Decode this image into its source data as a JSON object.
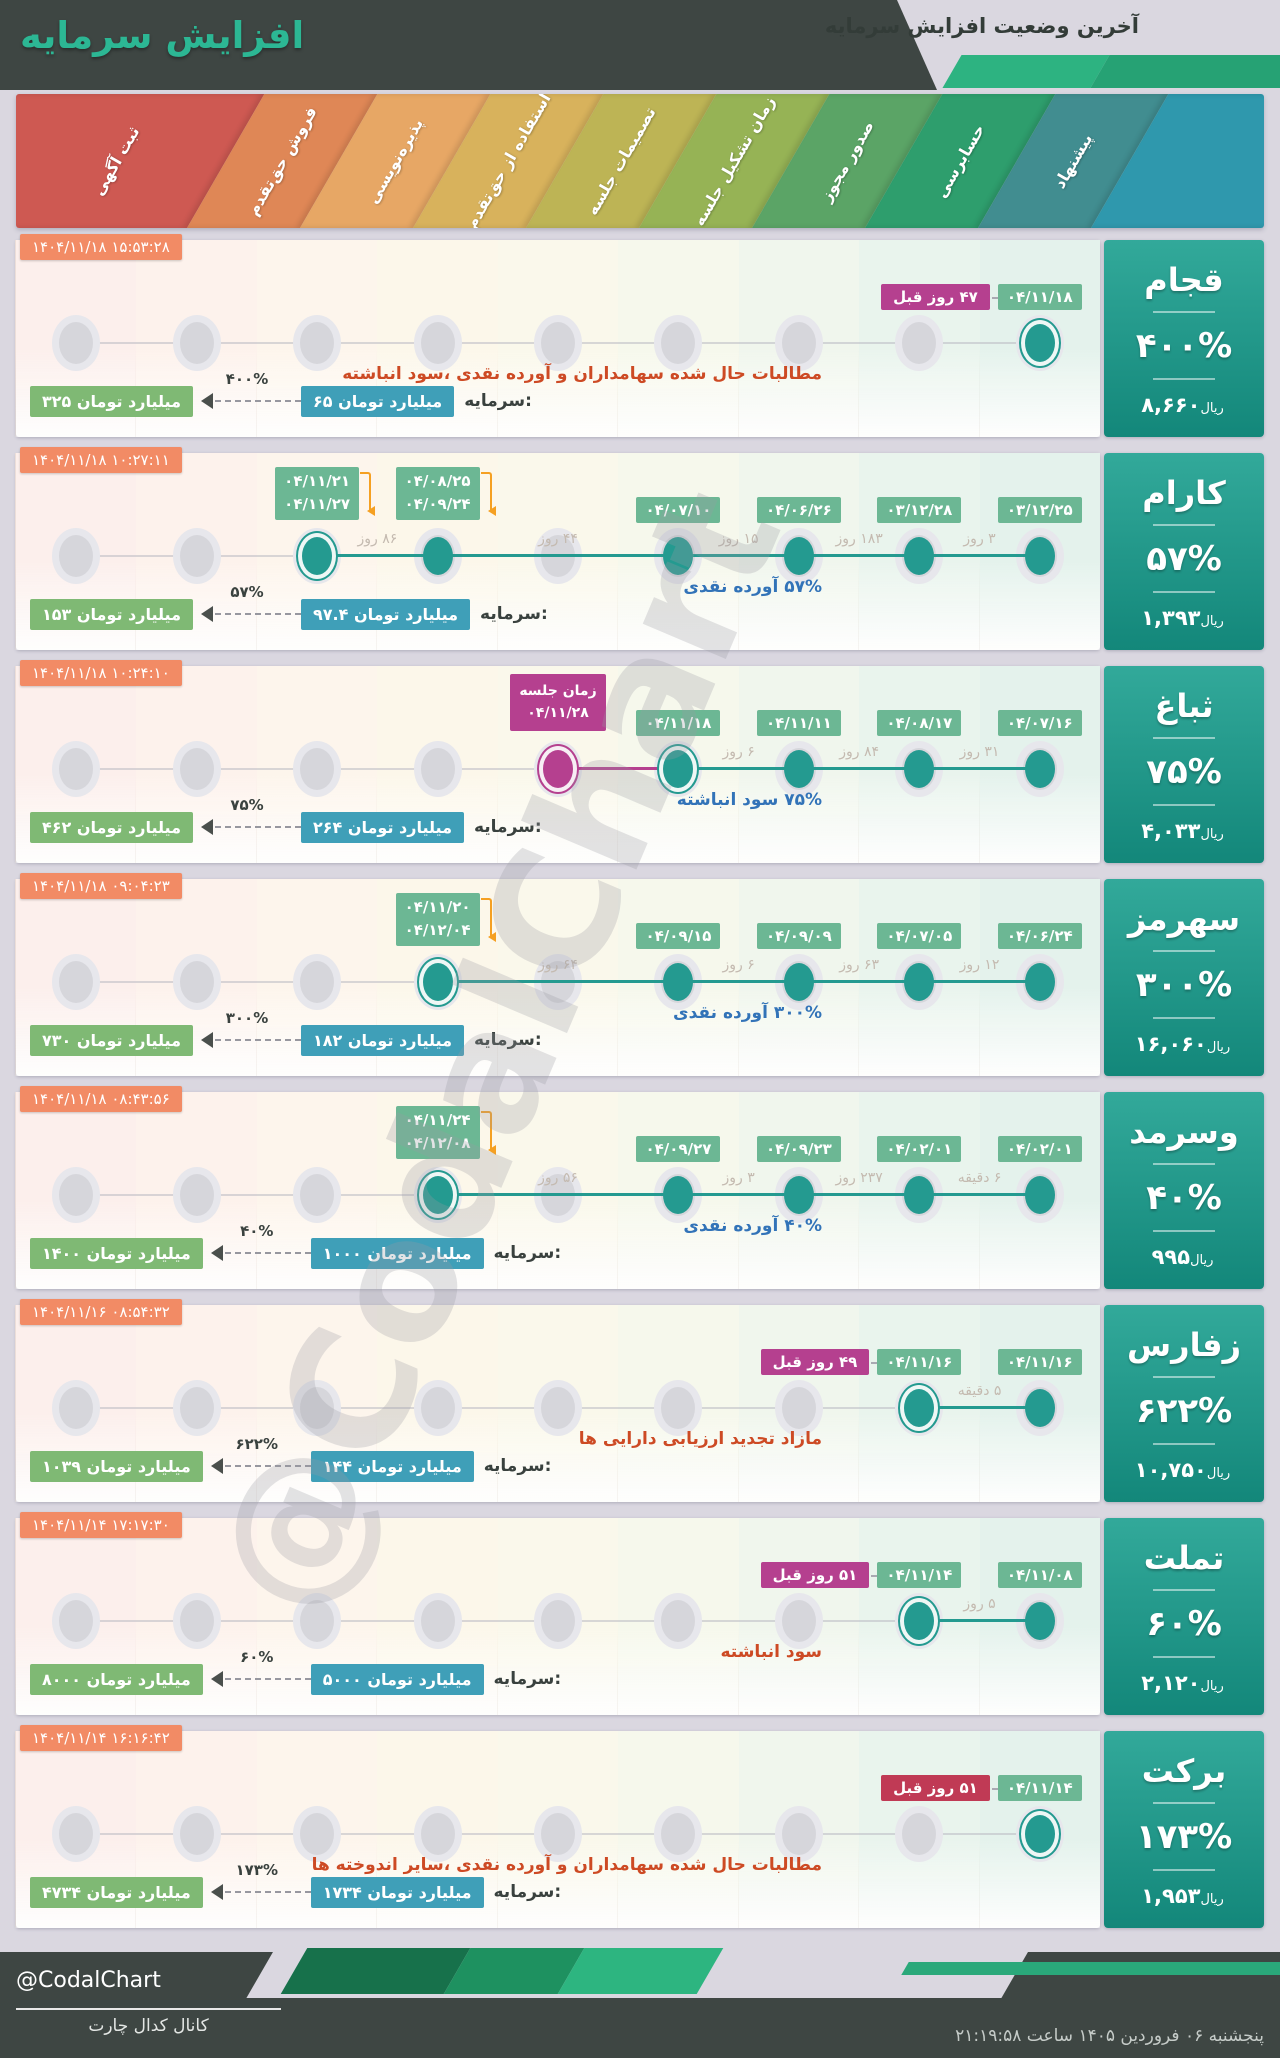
{
  "header": {
    "title": "افزایش سرمایه",
    "subtitle": "آخرین وضعیت افزایش سرمایه"
  },
  "watermark": "@CodalChart",
  "banner_filler": "#2f98ad",
  "theme": {
    "teal": "#249a90",
    "badge_green": "#6cb794",
    "badge_pink": "#b5408f",
    "badge_red": "#c03a55",
    "timestamp_orange": "#f28b65",
    "capital_blue": "#3f9fb8",
    "capital_green": "#7fb974",
    "desc_red": "#cd4a24",
    "desc_blue": "#3273b8"
  },
  "stages": [
    {
      "label": "پیشنهاد",
      "color": "#418d90",
      "tint": "#e4f2ec"
    },
    {
      "label": "حسابرسی",
      "color": "#2e9e6d",
      "tint": "#e9f4ed"
    },
    {
      "label": "صدور مجوز",
      "color": "#5ba466",
      "tint": "#f0f6ed"
    },
    {
      "label": "زمان تشکیل جلسه",
      "color": "#96b355",
      "tint": "#f6f8ec"
    },
    {
      "label": "تصمیمات جلسه",
      "color": "#bdb455",
      "tint": "#faf8eb"
    },
    {
      "label": "استفاده از حق‌تقدم",
      "color": "#d8b25c",
      "tint": "#fcf7ea"
    },
    {
      "label": "پذیره‌نویسی",
      "color": "#e7a765",
      "tint": "#fdf5ec"
    },
    {
      "label": "فروش حق‌تقدم",
      "color": "#df8756",
      "tint": "#fdf2ec"
    },
    {
      "label": "ثبت آگهی",
      "color": "#ce5952",
      "tint": "#fcefec"
    }
  ],
  "rows": [
    {
      "symbol": "قجام",
      "percent": "۴۰۰%",
      "price": "۸,۶۶۰",
      "price_unit": "ریال",
      "timestamp": "۱۴۰۴/۱۱/۱۸ ۱۵:۵۳:۲۸",
      "description": "مطالبات حال شده سهامداران و آورده نقدی ،سود انباشته",
      "description_color": "red",
      "ago": {
        "stage": 0,
        "text": "۴۷ روز قبل",
        "style": "pink"
      },
      "capital": {
        "label": "سرمایه:",
        "from": "۶۵ میلیارد تومان",
        "to": "۳۲۵ میلیارد تومان",
        "percent": "۴۰۰%"
      },
      "dots": [
        {
          "stage": 0,
          "dates": [
            "۰۴/۱۱/۱۸"
          ],
          "current": true
        }
      ],
      "gaps": []
    },
    {
      "symbol": "کارام",
      "percent": "۵۷%",
      "price": "۱,۳۹۳",
      "price_unit": "ریال",
      "timestamp": "۱۴۰۴/۱۱/۱۸ ۱۰:۲۷:۱۱",
      "description": "۵۷% آورده نقدی",
      "description_color": "blue",
      "capital": {
        "label": "سرمایه:",
        "from": "۹۷.۴ میلیارد تومان",
        "to": "۱۵۳ میلیارد تومان",
        "percent": "۵۷%"
      },
      "dots": [
        {
          "stage": 0,
          "dates": [
            "۰۳/۱۲/۲۵"
          ]
        },
        {
          "stage": 1,
          "dates": [
            "۰۳/۱۲/۲۸"
          ]
        },
        {
          "stage": 2,
          "dates": [
            "۰۴/۰۶/۲۶"
          ]
        },
        {
          "stage": 3,
          "dates": [
            "۰۴/۰۷/۱۰"
          ]
        },
        {
          "stage": 5,
          "dates": [
            "۰۴/۰۸/۲۵",
            "۰۴/۰۹/۲۴"
          ]
        },
        {
          "stage": 6,
          "dates": [
            "۰۴/۱۱/۲۱",
            "۰۴/۱۱/۲۷"
          ],
          "current": true
        }
      ],
      "gaps": [
        {
          "from": 0,
          "to": 1,
          "text": "۳ روز"
        },
        {
          "from": 1,
          "to": 2,
          "text": "۱۸۳ روز"
        },
        {
          "from": 2,
          "to": 3,
          "text": "۱۵ روز"
        },
        {
          "from": 3,
          "to": 5,
          "text": "۴۴ روز"
        },
        {
          "from": 5,
          "to": 6,
          "text": "۸۶ روز"
        }
      ]
    },
    {
      "symbol": "ثباغ",
      "percent": "۷۵%",
      "price": "۴,۰۳۳",
      "price_unit": "ریال",
      "timestamp": "۱۴۰۴/۱۱/۱۸ ۱۰:۲۴:۱۰",
      "description": "۷۵% سود انباشته",
      "description_color": "blue",
      "meeting": {
        "stage": 4,
        "label": "زمان جلسه",
        "date": "۰۴/۱۱/۲۸"
      },
      "capital": {
        "label": "سرمایه:",
        "from": "۲۶۴ میلیارد تومان",
        "to": "۴۶۲ میلیارد تومان",
        "percent": "۷۵%"
      },
      "dots": [
        {
          "stage": 0,
          "dates": [
            "۰۴/۰۷/۱۶"
          ]
        },
        {
          "stage": 1,
          "dates": [
            "۰۴/۰۸/۱۷"
          ]
        },
        {
          "stage": 2,
          "dates": [
            "۰۴/۱۱/۱۱"
          ]
        },
        {
          "stage": 3,
          "dates": [
            "۰۴/۱۱/۱۸"
          ],
          "current": true
        }
      ],
      "gaps": [
        {
          "from": 0,
          "to": 1,
          "text": "۳۱ روز"
        },
        {
          "from": 1,
          "to": 2,
          "text": "۸۴ روز"
        },
        {
          "from": 2,
          "to": 3,
          "text": "۶ روز"
        }
      ]
    },
    {
      "symbol": "سهرمز",
      "percent": "۳۰۰%",
      "price": "۱۶,۰۶۰",
      "price_unit": "ریال",
      "timestamp": "۱۴۰۴/۱۱/۱۸ ۰۹:۰۴:۲۳",
      "description": "۳۰۰% آورده نقدی",
      "description_color": "blue",
      "capital": {
        "label": "سرمایه:",
        "from": "۱۸۲ میلیارد تومان",
        "to": "۷۳۰ میلیارد تومان",
        "percent": "۳۰۰%"
      },
      "dots": [
        {
          "stage": 0,
          "dates": [
            "۰۴/۰۶/۲۴"
          ]
        },
        {
          "stage": 1,
          "dates": [
            "۰۴/۰۷/۰۵"
          ]
        },
        {
          "stage": 2,
          "dates": [
            "۰۴/۰۹/۰۹"
          ]
        },
        {
          "stage": 3,
          "dates": [
            "۰۴/۰۹/۱۵"
          ]
        },
        {
          "stage": 5,
          "dates": [
            "۰۴/۱۱/۲۰",
            "۰۴/۱۲/۰۴"
          ],
          "current": true
        }
      ],
      "gaps": [
        {
          "from": 0,
          "to": 1,
          "text": "۱۲ روز"
        },
        {
          "from": 1,
          "to": 2,
          "text": "۶۳ روز"
        },
        {
          "from": 2,
          "to": 3,
          "text": "۶ روز"
        },
        {
          "from": 3,
          "to": 5,
          "text": "۶۴ روز"
        }
      ]
    },
    {
      "symbol": "وسرمد",
      "percent": "۴۰%",
      "price": "۹۹۵",
      "price_unit": "ریال",
      "timestamp": "۱۴۰۴/۱۱/۱۸ ۰۸:۴۳:۵۶",
      "description": "۴۰% آورده نقدی",
      "description_color": "blue",
      "capital": {
        "label": "سرمایه:",
        "from": "۱۰۰۰ میلیارد تومان",
        "to": "۱۴۰۰ میلیارد تومان",
        "percent": "۴۰%"
      },
      "dots": [
        {
          "stage": 0,
          "dates": [
            "۰۴/۰۲/۰۱"
          ]
        },
        {
          "stage": 1,
          "dates": [
            "۰۴/۰۲/۰۱"
          ]
        },
        {
          "stage": 2,
          "dates": [
            "۰۴/۰۹/۲۳"
          ]
        },
        {
          "stage": 3,
          "dates": [
            "۰۴/۰۹/۲۷"
          ]
        },
        {
          "stage": 5,
          "dates": [
            "۰۴/۱۱/۲۴",
            "۰۴/۱۲/۰۸"
          ],
          "current": true
        }
      ],
      "gaps": [
        {
          "from": 0,
          "to": 1,
          "text": "۶ دقیقه"
        },
        {
          "from": 1,
          "to": 2,
          "text": "۲۳۷ روز"
        },
        {
          "from": 2,
          "to": 3,
          "text": "۳ روز"
        },
        {
          "from": 3,
          "to": 5,
          "text": "۵۶ روز"
        }
      ]
    },
    {
      "symbol": "زفارس",
      "percent": "۶۲۲%",
      "price": "۱۰,۷۵۰",
      "price_unit": "ریال",
      "timestamp": "۱۴۰۴/۱۱/۱۶ ۰۸:۵۴:۳۲",
      "description": "مازاد تجدید ارزیابی دارایی ها",
      "description_color": "red",
      "ago": {
        "stage": 1,
        "text": "۴۹ روز قبل",
        "style": "pink"
      },
      "capital": {
        "label": "سرمایه:",
        "from": "۱۴۴ میلیارد تومان",
        "to": "۱۰۳۹ میلیارد تومان",
        "percent": "۶۲۲%"
      },
      "dots": [
        {
          "stage": 0,
          "dates": [
            "۰۴/۱۱/۱۶"
          ]
        },
        {
          "stage": 1,
          "dates": [
            "۰۴/۱۱/۱۶"
          ],
          "current": true
        }
      ],
      "gaps": [
        {
          "from": 0,
          "to": 1,
          "text": "۵ دقیقه"
        }
      ]
    },
    {
      "symbol": "تملت",
      "percent": "۶۰%",
      "price": "۲,۱۲۰",
      "price_unit": "ریال",
      "timestamp": "۱۴۰۴/۱۱/۱۴ ۱۷:۱۷:۳۰",
      "description": "سود انباشته",
      "description_color": "red",
      "ago": {
        "stage": 1,
        "text": "۵۱ روز قبل",
        "style": "pink"
      },
      "capital": {
        "label": "سرمایه:",
        "from": "۵۰۰۰ میلیارد تومان",
        "to": "۸۰۰۰ میلیارد تومان",
        "percent": "۶۰%"
      },
      "dots": [
        {
          "stage": 0,
          "dates": [
            "۰۴/۱۱/۰۸"
          ]
        },
        {
          "stage": 1,
          "dates": [
            "۰۴/۱۱/۱۴"
          ],
          "current": true
        }
      ],
      "gaps": [
        {
          "from": 0,
          "to": 1,
          "text": "۵ روز"
        }
      ]
    },
    {
      "symbol": "برکت",
      "percent": "۱۷۳%",
      "price": "۱,۹۵۳",
      "price_unit": "ریال",
      "timestamp": "۱۴۰۴/۱۱/۱۴ ۱۶:۱۶:۴۲",
      "description": "مطالبات حال شده سهامداران و آورده نقدی ،سایر اندوخته ها",
      "description_color": "red",
      "ago": {
        "stage": 0,
        "text": "۵۱ روز قبل",
        "style": "red"
      },
      "capital": {
        "label": "سرمایه:",
        "from": "۱۷۳۴ میلیارد تومان",
        "to": "۴۷۳۴ میلیارد تومان",
        "percent": "۱۷۳%"
      },
      "dots": [
        {
          "stage": 0,
          "dates": [
            "۰۴/۱۱/۱۴"
          ],
          "current": true
        }
      ],
      "gaps": []
    }
  ],
  "footer": {
    "handle": "@CodalChart",
    "channel": "کانال کدال چارت",
    "datetime": "پنجشنبه ۰۶ فروردین ۱۴۰۵ ساعت ۲۱:۱۹:۵۸"
  }
}
